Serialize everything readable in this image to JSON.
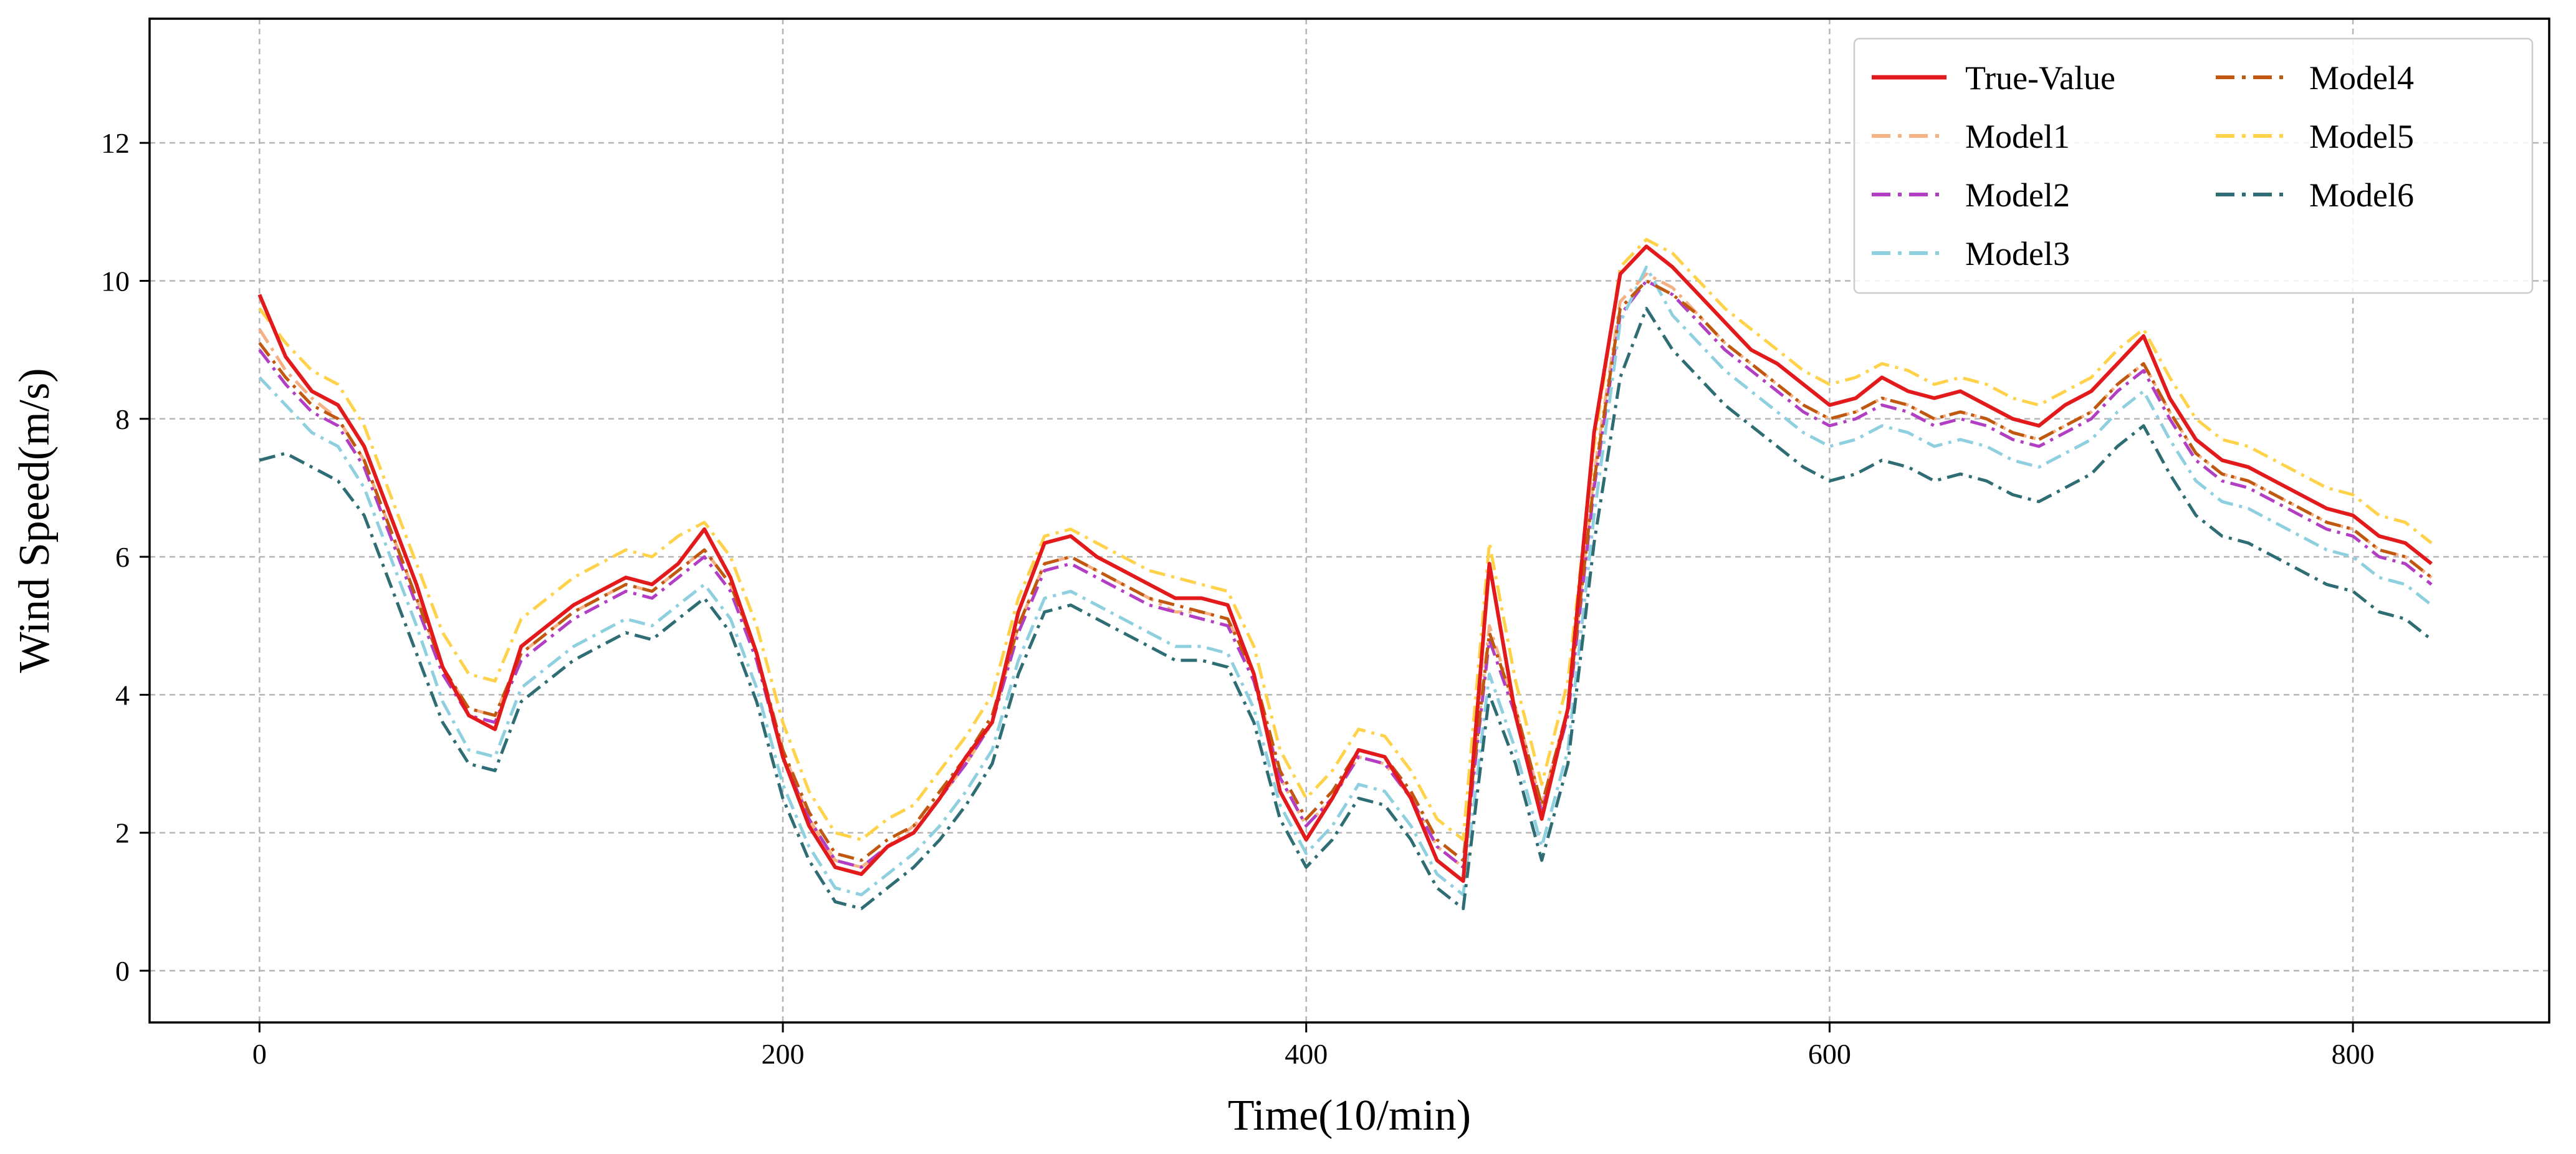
{
  "chart_data": {
    "type": "line",
    "title": "",
    "xlabel": "Time(10/min)",
    "ylabel": "Wind Speed(m/s)",
    "xlim": [
      -42,
      875
    ],
    "ylim": [
      -0.75,
      13.8
    ],
    "xticks": [
      0,
      200,
      400,
      600,
      800
    ],
    "yticks": [
      0,
      2,
      4,
      6,
      8,
      10,
      12
    ],
    "grid": true,
    "legend_position": "top-right",
    "x": [
      0,
      10,
      20,
      30,
      40,
      50,
      60,
      70,
      80,
      90,
      100,
      110,
      120,
      130,
      140,
      150,
      160,
      170,
      180,
      190,
      200,
      210,
      220,
      230,
      240,
      250,
      260,
      270,
      280,
      290,
      300,
      310,
      320,
      330,
      340,
      350,
      360,
      370,
      380,
      390,
      400,
      410,
      420,
      430,
      440,
      450,
      460,
      470,
      480,
      490,
      500,
      510,
      520,
      530,
      540,
      550,
      560,
      570,
      580,
      590,
      600,
      610,
      620,
      630,
      640,
      650,
      660,
      670,
      680,
      690,
      700,
      710,
      720,
      730,
      740,
      750,
      760,
      770,
      780,
      790,
      800,
      810,
      820,
      830
    ],
    "series": [
      {
        "name": "True-Value",
        "color": "#e31a1c",
        "dash": "solid",
        "values": [
          9.8,
          8.9,
          8.4,
          8.2,
          7.6,
          6.6,
          5.6,
          4.4,
          3.7,
          3.5,
          4.7,
          5.0,
          5.3,
          5.5,
          5.7,
          5.6,
          5.9,
          6.4,
          5.7,
          4.6,
          3.1,
          2.1,
          1.5,
          1.4,
          1.8,
          2.0,
          2.5,
          3.1,
          3.6,
          5.2,
          6.2,
          6.3,
          6.0,
          5.8,
          5.6,
          5.4,
          5.4,
          5.3,
          4.3,
          2.6,
          1.9,
          2.5,
          3.2,
          3.1,
          2.5,
          1.6,
          1.3,
          5.9,
          3.7,
          2.2,
          3.8,
          7.8,
          10.1,
          10.5,
          10.2,
          9.8,
          9.4,
          9.0,
          8.8,
          8.5,
          8.2,
          8.3,
          8.6,
          8.4,
          8.3,
          8.4,
          8.2,
          8.0,
          7.9,
          8.2,
          8.4,
          8.8,
          9.2,
          8.3,
          7.7,
          7.4,
          7.3,
          7.1,
          6.9,
          6.7,
          6.6,
          6.3,
          6.2,
          5.9
        ]
      },
      {
        "name": "Model1",
        "color": "#f4b183",
        "dash": "dashdot",
        "values": [
          9.3,
          8.7,
          8.3,
          8.0,
          7.4,
          6.4,
          5.4,
          4.4,
          3.8,
          3.7,
          4.6,
          4.9,
          5.2,
          5.4,
          5.6,
          5.5,
          5.8,
          6.1,
          5.6,
          4.6,
          3.2,
          2.2,
          1.6,
          1.5,
          1.8,
          2.1,
          2.5,
          3.0,
          3.6,
          5.0,
          5.9,
          6.0,
          5.8,
          5.6,
          5.4,
          5.2,
          5.2,
          5.1,
          4.3,
          2.8,
          2.1,
          2.5,
          3.1,
          3.0,
          2.5,
          1.8,
          1.5,
          5.0,
          3.8,
          2.4,
          3.8,
          7.2,
          9.7,
          10.1,
          9.9,
          9.5,
          9.1,
          8.8,
          8.5,
          8.2,
          8.0,
          8.1,
          8.3,
          8.2,
          8.0,
          8.1,
          8.0,
          7.8,
          7.7,
          7.9,
          8.1,
          8.5,
          8.8,
          8.1,
          7.5,
          7.2,
          7.1,
          6.9,
          6.7,
          6.5,
          6.4,
          6.1,
          6.0,
          5.7
        ]
      },
      {
        "name": "Model2",
        "color": "#b23ec3",
        "dash": "dashdot",
        "values": [
          9.0,
          8.5,
          8.1,
          7.9,
          7.3,
          6.3,
          5.3,
          4.3,
          3.7,
          3.6,
          4.5,
          4.8,
          5.1,
          5.3,
          5.5,
          5.4,
          5.7,
          6.0,
          5.5,
          4.5,
          3.1,
          2.2,
          1.6,
          1.5,
          1.8,
          2.0,
          2.5,
          3.0,
          3.6,
          4.9,
          5.8,
          5.9,
          5.7,
          5.5,
          5.3,
          5.2,
          5.1,
          5.0,
          4.2,
          2.8,
          2.1,
          2.5,
          3.1,
          3.0,
          2.5,
          1.8,
          1.5,
          4.8,
          3.7,
          2.3,
          3.7,
          7.0,
          9.5,
          10.0,
          9.8,
          9.4,
          9.0,
          8.7,
          8.4,
          8.1,
          7.9,
          8.0,
          8.2,
          8.1,
          7.9,
          8.0,
          7.9,
          7.7,
          7.6,
          7.8,
          8.0,
          8.4,
          8.7,
          8.0,
          7.4,
          7.1,
          7.0,
          6.8,
          6.6,
          6.4,
          6.3,
          6.0,
          5.9,
          5.6
        ]
      },
      {
        "name": "Model3",
        "color": "#8ecfe0",
        "dash": "dashdot",
        "values": [
          8.6,
          8.2,
          7.8,
          7.6,
          7.0,
          6.0,
          5.0,
          3.9,
          3.2,
          3.1,
          4.1,
          4.4,
          4.7,
          4.9,
          5.1,
          5.0,
          5.3,
          5.6,
          5.1,
          4.1,
          2.7,
          1.8,
          1.2,
          1.1,
          1.4,
          1.7,
          2.1,
          2.6,
          3.2,
          4.5,
          5.4,
          5.5,
          5.3,
          5.1,
          4.9,
          4.7,
          4.7,
          4.6,
          3.8,
          2.4,
          1.7,
          2.1,
          2.7,
          2.6,
          2.1,
          1.4,
          1.1,
          4.3,
          3.2,
          1.8,
          3.2,
          6.6,
          9.4,
          10.2,
          9.5,
          9.1,
          8.7,
          8.4,
          8.1,
          7.8,
          7.6,
          7.7,
          7.9,
          7.8,
          7.6,
          7.7,
          7.6,
          7.4,
          7.3,
          7.5,
          7.7,
          8.1,
          8.4,
          7.7,
          7.1,
          6.8,
          6.7,
          6.5,
          6.3,
          6.1,
          6.0,
          5.7,
          5.6,
          5.3
        ]
      },
      {
        "name": "Model4",
        "color": "#c0580f",
        "dash": "dashdot",
        "values": [
          9.1,
          8.6,
          8.2,
          8.0,
          7.4,
          6.4,
          5.4,
          4.4,
          3.8,
          3.7,
          4.6,
          4.9,
          5.2,
          5.4,
          5.6,
          5.5,
          5.8,
          6.1,
          5.6,
          4.6,
          3.2,
          2.3,
          1.7,
          1.6,
          1.9,
          2.1,
          2.6,
          3.1,
          3.7,
          5.0,
          5.9,
          6.0,
          5.8,
          5.6,
          5.4,
          5.3,
          5.2,
          5.1,
          4.3,
          2.9,
          2.2,
          2.6,
          3.2,
          3.1,
          2.6,
          1.9,
          1.6,
          4.9,
          3.8,
          2.4,
          3.8,
          7.1,
          9.6,
          10.0,
          9.8,
          9.5,
          9.1,
          8.8,
          8.5,
          8.2,
          8.0,
          8.1,
          8.3,
          8.2,
          8.0,
          8.1,
          8.0,
          7.8,
          7.7,
          7.9,
          8.1,
          8.5,
          8.8,
          8.1,
          7.5,
          7.2,
          7.1,
          6.9,
          6.7,
          6.5,
          6.4,
          6.1,
          6.0,
          5.7
        ]
      },
      {
        "name": "Model5",
        "color": "#ffd24a",
        "dash": "dashdot",
        "values": [
          9.6,
          9.1,
          8.7,
          8.5,
          7.9,
          6.9,
          5.9,
          4.9,
          4.3,
          4.2,
          5.1,
          5.4,
          5.7,
          5.9,
          6.1,
          6.0,
          6.3,
          6.5,
          6.0,
          5.0,
          3.6,
          2.6,
          2.0,
          1.9,
          2.2,
          2.4,
          2.9,
          3.4,
          4.0,
          5.4,
          6.3,
          6.4,
          6.2,
          6.0,
          5.8,
          5.7,
          5.6,
          5.5,
          4.7,
          3.2,
          2.5,
          2.9,
          3.5,
          3.4,
          2.9,
          2.2,
          1.9,
          6.2,
          4.2,
          2.7,
          4.2,
          7.6,
          10.2,
          10.6,
          10.4,
          10.0,
          9.6,
          9.3,
          9.0,
          8.7,
          8.5,
          8.6,
          8.8,
          8.7,
          8.5,
          8.6,
          8.5,
          8.3,
          8.2,
          8.4,
          8.6,
          9.0,
          9.3,
          8.6,
          8.0,
          7.7,
          7.6,
          7.4,
          7.2,
          7.0,
          6.9,
          6.6,
          6.5,
          6.2
        ]
      },
      {
        "name": "Model6",
        "color": "#2e6d73",
        "dash": "dashdot",
        "values": [
          7.4,
          7.5,
          7.3,
          7.1,
          6.6,
          5.6,
          4.6,
          3.6,
          3.0,
          2.9,
          3.9,
          4.2,
          4.5,
          4.7,
          4.9,
          4.8,
          5.1,
          5.4,
          4.9,
          3.9,
          2.5,
          1.6,
          1.0,
          0.9,
          1.2,
          1.5,
          1.9,
          2.4,
          3.0,
          4.3,
          5.2,
          5.3,
          5.1,
          4.9,
          4.7,
          4.5,
          4.5,
          4.4,
          3.6,
          2.2,
          1.5,
          1.9,
          2.5,
          2.4,
          1.9,
          1.2,
          0.9,
          4.0,
          3.0,
          1.6,
          3.0,
          6.2,
          8.6,
          9.6,
          9.0,
          8.6,
          8.2,
          7.9,
          7.6,
          7.3,
          7.1,
          7.2,
          7.4,
          7.3,
          7.1,
          7.2,
          7.1,
          6.9,
          6.8,
          7.0,
          7.2,
          7.6,
          7.9,
          7.2,
          6.6,
          6.3,
          6.2,
          6.0,
          5.8,
          5.6,
          5.5,
          5.2,
          5.1,
          4.8
        ]
      }
    ]
  }
}
